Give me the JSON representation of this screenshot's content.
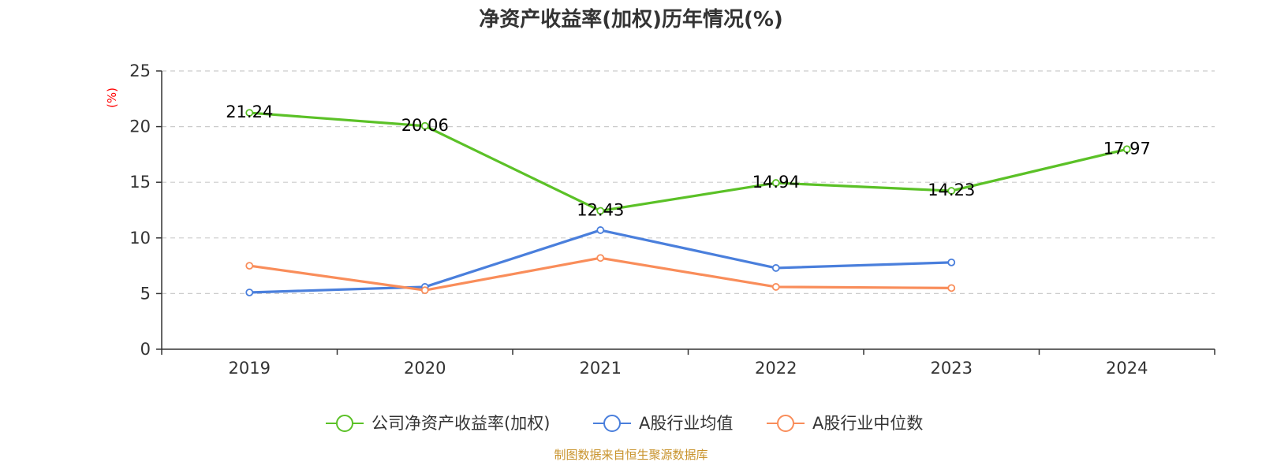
{
  "chart_data": {
    "type": "line",
    "title": "净资产收益率(加权)历年情况(%)",
    "ylabel": "(%)",
    "categories": [
      "2019",
      "2020",
      "2021",
      "2022",
      "2023",
      "2024"
    ],
    "ylim": [
      0,
      25
    ],
    "yticks": [
      0,
      5,
      10,
      15,
      20,
      25
    ],
    "grid": "horizontal-dashed",
    "legend_position": "bottom",
    "series": [
      {
        "name": "公司净资产收益率(加权)",
        "color": "#5bc127",
        "values": [
          21.24,
          20.06,
          12.43,
          14.94,
          14.23,
          17.97
        ],
        "labels": [
          "21.24",
          "20.06",
          "12.43",
          "14.94",
          "14.23",
          "17.97"
        ]
      },
      {
        "name": "A股行业均值",
        "color": "#4a7fdc",
        "values": [
          5.1,
          5.6,
          10.7,
          7.3,
          7.8,
          null
        ]
      },
      {
        "name": "A股行业中位数",
        "color": "#f98d5a",
        "values": [
          7.5,
          5.3,
          8.2,
          5.6,
          5.5,
          null
        ]
      }
    ]
  },
  "source": "制图数据来自恒生聚源数据库",
  "colors": {
    "source": "#c8932c",
    "ylabel": "#ff0000",
    "axis": "#333333",
    "grid": "#cccccc"
  }
}
